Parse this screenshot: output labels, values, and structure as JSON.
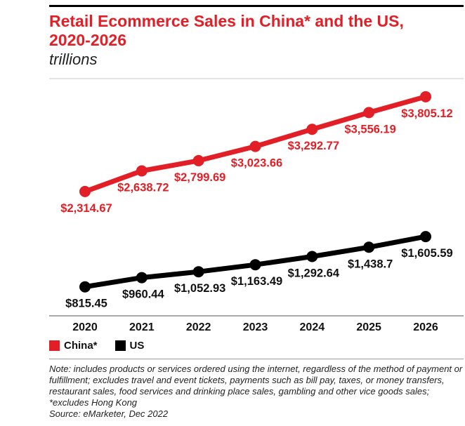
{
  "chart_data": {
    "type": "line",
    "title": "Retail Ecommerce Sales in China* and the US, 2020-2026",
    "subtitle": "trillions",
    "x": [
      "2020",
      "2021",
      "2022",
      "2023",
      "2024",
      "2025",
      "2026"
    ],
    "ylim": [
      360,
      4090
    ],
    "grid": false,
    "legend": "bottom-left",
    "series": [
      {
        "name": "China*",
        "color": "#e21f26",
        "values": [
          2314.67,
          2638.72,
          2799.69,
          3023.66,
          3292.77,
          3556.19,
          3805.12
        ],
        "data_labels": [
          "$2,314.67",
          "$2,638.72",
          "$2,799.69",
          "$3,023.66",
          "$3,292.77",
          "$3,556.19",
          "$3,805.12"
        ]
      },
      {
        "name": "US",
        "color": "#000000",
        "values": [
          815.45,
          960.44,
          1052.93,
          1163.49,
          1292.64,
          1438.7,
          1605.59
        ],
        "data_labels": [
          "$815.45",
          "$960.44",
          "$1,052.93",
          "$1,163.49",
          "$1,292.64",
          "$1,438.7",
          "$1,605.59"
        ]
      }
    ]
  },
  "footer": {
    "note": "Note: includes products or services ordered using the internet, regardless of the method of payment or fulfillment; excludes travel and event tickets, payments such as bill pay, taxes, or money transfers, restaurant sales, food services and drinking place sales, gambling and other vice goods sales; *excludes Hong Kong",
    "source": "Source: eMarketer, Dec 2022"
  }
}
